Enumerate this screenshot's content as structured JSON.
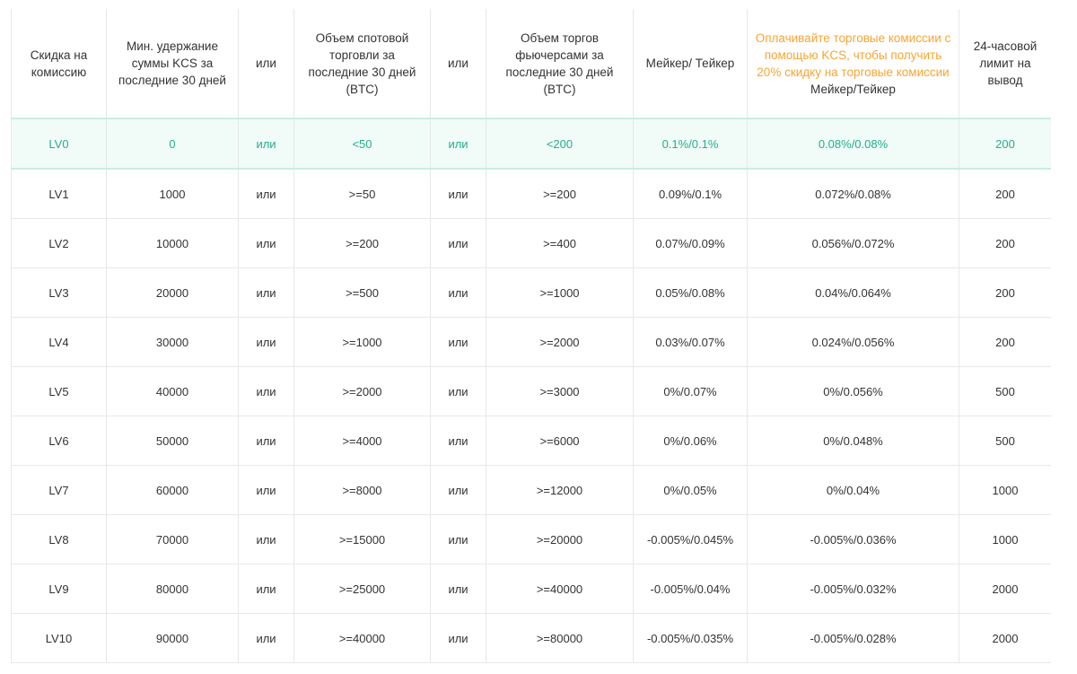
{
  "headers": {
    "discount": "Скидка на комиссию",
    "min_kcs": "Мин. удержание суммы KCS за последние 30 дней",
    "or1": "или",
    "spot_volume": "Объем спотовой торговли за последние 30 дней (BTC)",
    "or2": "или",
    "futures_volume": "Объем торгов фьючерсами за последние 30 дней (BTC)",
    "maker_taker": "Мейкер/ Тейкер",
    "kcs_promo": "Оплачивайте торговые комиссии с помощью KCS, чтобы получить 20% скидку на торговые комиссии",
    "kcs_maker_taker": "Мейкер/Тейкер",
    "withdraw_limit": "24-часовой лимит на вывод"
  },
  "accent_color": "#24ae8f",
  "promo_color": "#f7a531",
  "rows": [
    {
      "level": "LV0",
      "kcs": "0",
      "or1": "или",
      "spot": "<50",
      "or2": "или",
      "futures": "<200",
      "fee": "0.1%/0.1%",
      "kcs_fee": "0.08%/0.08%",
      "limit": "200"
    },
    {
      "level": "LV1",
      "kcs": "1000",
      "or1": "или",
      "spot": ">=50",
      "or2": "или",
      "futures": ">=200",
      "fee": "0.09%/0.1%",
      "kcs_fee": "0.072%/0.08%",
      "limit": "200"
    },
    {
      "level": "LV2",
      "kcs": "10000",
      "or1": "или",
      "spot": ">=200",
      "or2": "или",
      "futures": ">=400",
      "fee": "0.07%/0.09%",
      "kcs_fee": "0.056%/0.072%",
      "limit": "200"
    },
    {
      "level": "LV3",
      "kcs": "20000",
      "or1": "или",
      "spot": ">=500",
      "or2": "или",
      "futures": ">=1000",
      "fee": "0.05%/0.08%",
      "kcs_fee": "0.04%/0.064%",
      "limit": "200"
    },
    {
      "level": "LV4",
      "kcs": "30000",
      "or1": "или",
      "spot": ">=1000",
      "or2": "или",
      "futures": ">=2000",
      "fee": "0.03%/0.07%",
      "kcs_fee": "0.024%/0.056%",
      "limit": "200"
    },
    {
      "level": "LV5",
      "kcs": "40000",
      "or1": "или",
      "spot": ">=2000",
      "or2": "или",
      "futures": ">=3000",
      "fee": "0%/0.07%",
      "kcs_fee": "0%/0.056%",
      "limit": "500"
    },
    {
      "level": "LV6",
      "kcs": "50000",
      "or1": "или",
      "spot": ">=4000",
      "or2": "или",
      "futures": ">=6000",
      "fee": "0%/0.06%",
      "kcs_fee": "0%/0.048%",
      "limit": "500"
    },
    {
      "level": "LV7",
      "kcs": "60000",
      "or1": "или",
      "spot": ">=8000",
      "or2": "или",
      "futures": ">=12000",
      "fee": "0%/0.05%",
      "kcs_fee": "0%/0.04%",
      "limit": "1000"
    },
    {
      "level": "LV8",
      "kcs": "70000",
      "or1": "или",
      "spot": ">=15000",
      "or2": "или",
      "futures": ">=20000",
      "fee": "-0.005%/0.045%",
      "kcs_fee": "-0.005%/0.036%",
      "limit": "1000"
    },
    {
      "level": "LV9",
      "kcs": "80000",
      "or1": "или",
      "spot": ">=25000",
      "or2": "или",
      "futures": ">=40000",
      "fee": "-0.005%/0.04%",
      "kcs_fee": "-0.005%/0.032%",
      "limit": "2000"
    },
    {
      "level": "LV10",
      "kcs": "90000",
      "or1": "или",
      "spot": ">=40000",
      "or2": "или",
      "futures": ">=80000",
      "fee": "-0.005%/0.035%",
      "kcs_fee": "-0.005%/0.028%",
      "limit": "2000"
    }
  ]
}
